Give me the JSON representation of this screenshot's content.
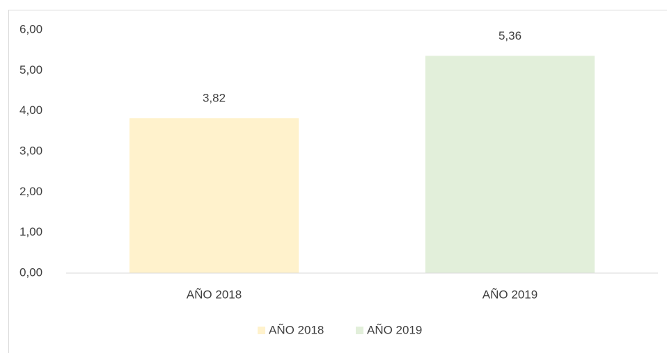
{
  "chart_data": {
    "type": "bar",
    "categories": [
      "AÑO 2018",
      "AÑO 2019"
    ],
    "values": [
      3.82,
      5.36
    ],
    "value_labels": [
      "3,82",
      "5,36"
    ],
    "colors": [
      "#fff2cc",
      "#e2efda"
    ],
    "ylim": [
      0,
      6
    ],
    "yticks": [
      {
        "value": 0,
        "label": "0,00"
      },
      {
        "value": 1,
        "label": "1,00"
      },
      {
        "value": 2,
        "label": "2,00"
      },
      {
        "value": 3,
        "label": "3,00"
      },
      {
        "value": 4,
        "label": "4,00"
      },
      {
        "value": 5,
        "label": "5,00"
      },
      {
        "value": 6,
        "label": "6,00"
      }
    ],
    "grid": false,
    "legend": "bottom"
  }
}
